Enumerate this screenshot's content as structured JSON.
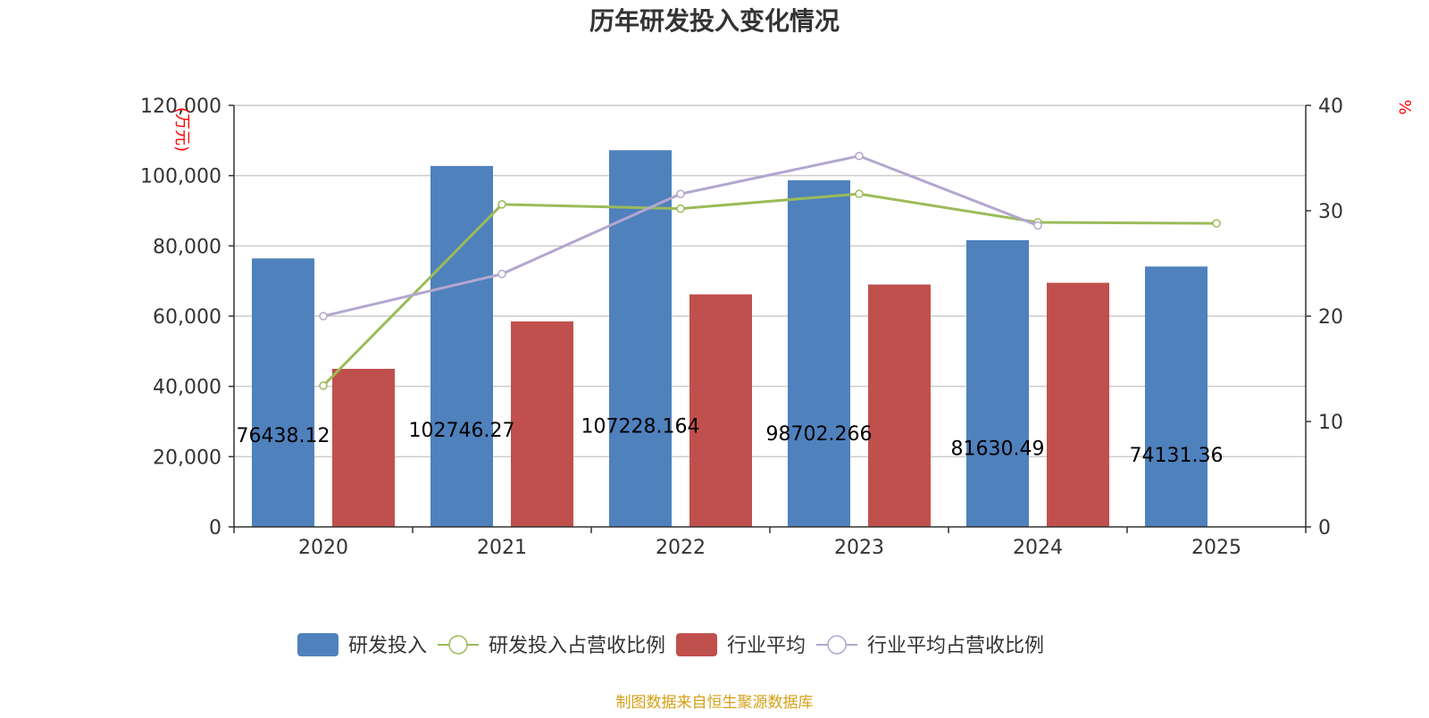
{
  "chart_data": {
    "type": "bar",
    "title": "历年研发投入变化情况",
    "categories": [
      "2020",
      "2021",
      "2022",
      "2023",
      "2024",
      "2025"
    ],
    "y_left": {
      "label": "(万元)",
      "range": [
        0,
        120000
      ],
      "ticks": [
        "0",
        "20,000",
        "40,000",
        "60,000",
        "80,000",
        "100,000",
        "120,000"
      ],
      "tick_values": [
        0,
        20000,
        40000,
        60000,
        80000,
        100000,
        120000
      ]
    },
    "y_right": {
      "label": "%",
      "range": [
        0,
        40
      ],
      "ticks": [
        "0",
        "10",
        "20",
        "30",
        "40"
      ],
      "tick_values": [
        0,
        10,
        20,
        30,
        40
      ]
    },
    "grid": true,
    "legend_position": "bottom",
    "series": [
      {
        "name": "研发投入",
        "kind": "bar",
        "axis": "left",
        "color": "#4f81bd",
        "values": [
          76438.12,
          102746.27,
          107228.164,
          98702.266,
          81630.49,
          74131.36
        ],
        "labels": [
          "76438.12",
          "102746.27",
          "107228.164",
          "98702.266",
          "81630.49",
          "74131.36"
        ]
      },
      {
        "name": "研发投入占营收比例",
        "kind": "line",
        "axis": "right",
        "color": "#9bbb59",
        "values": [
          13.4,
          30.6,
          30.2,
          31.6,
          28.9,
          28.8
        ]
      },
      {
        "name": "行业平均",
        "kind": "bar",
        "axis": "left",
        "color": "#c0504d",
        "values": [
          45000,
          58500,
          66200,
          69000,
          69500,
          null
        ]
      },
      {
        "name": "行业平均占营收比例",
        "kind": "line",
        "axis": "right",
        "color": "#b3a6cf",
        "values": [
          20.0,
          24.0,
          31.6,
          35.2,
          28.6,
          null
        ]
      }
    ]
  },
  "footer": {
    "source": "制图数据来自恒生聚源数据库",
    "source_color": "#d4a017"
  }
}
